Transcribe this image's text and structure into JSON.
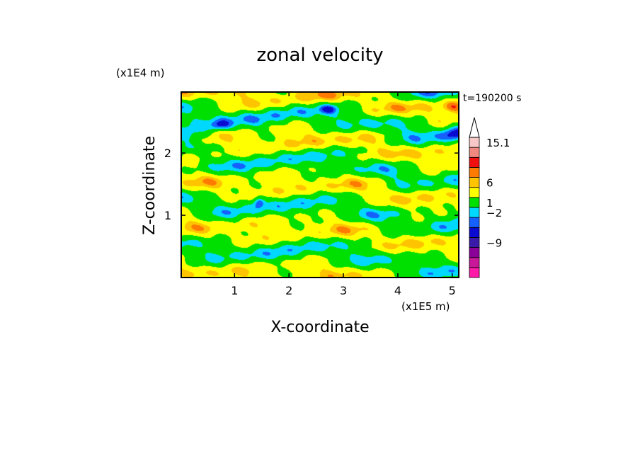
{
  "chart_data": {
    "type": "heatmap",
    "title": "zonal velocity",
    "xlabel": "X-coordinate",
    "ylabel": "Z-coordinate",
    "x_scale_label": "(x1E5 m)",
    "y_scale_label": "(x1E4 m)",
    "time_label": "t=190200 s",
    "x_ticks": [
      "1",
      "2",
      "3",
      "4",
      "5"
    ],
    "x_tick_values": [
      1,
      2,
      3,
      4,
      5
    ],
    "y_ticks": [
      "1",
      "2"
    ],
    "y_tick_values": [
      1,
      2
    ],
    "xlim": [
      0.02,
      5.12
    ],
    "ylim": [
      0.0,
      2.98
    ],
    "colorbar": {
      "labels": [
        "15.1",
        "6",
        "1",
        "-2",
        "-9"
      ],
      "levels": [
        {
          "color": "#ff1aa8"
        },
        {
          "color": "#c8189a"
        },
        {
          "color": "#8a0099"
        },
        {
          "color": "#3a1aa8"
        },
        {
          "color": "#0a0ad0"
        },
        {
          "color": "#1560ff"
        },
        {
          "color": "#00d8ff"
        },
        {
          "color": "#00e000"
        },
        {
          "color": "#ffff00"
        },
        {
          "color": "#ffc400"
        },
        {
          "color": "#ff7a00"
        },
        {
          "color": "#f01010"
        },
        {
          "color": "#f08a80"
        },
        {
          "color": "#f8c8c8"
        }
      ]
    }
  }
}
